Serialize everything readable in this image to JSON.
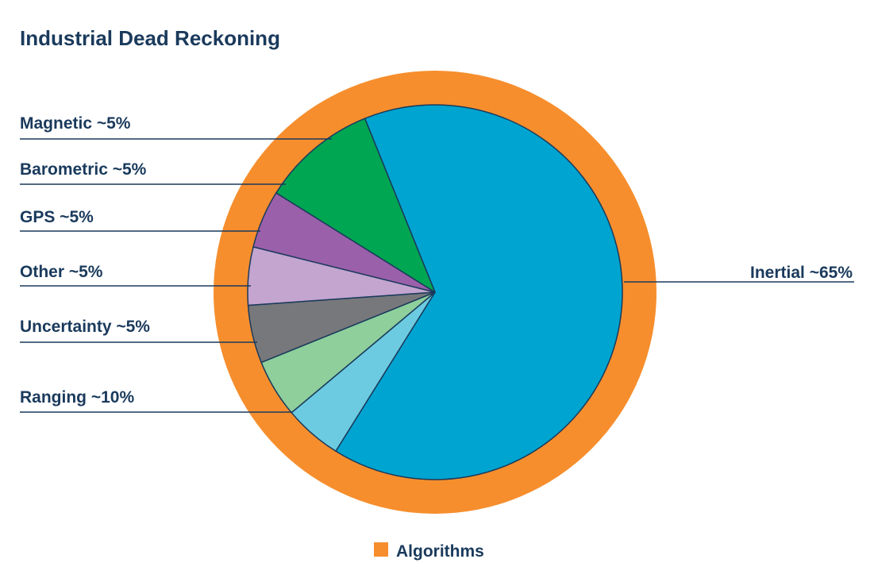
{
  "chart_data": {
    "type": "pie",
    "title": "Industrial Dead Reckoning",
    "slices": [
      {
        "label": "Inertial ~65%",
        "value": 65,
        "color": "#00a4d0"
      },
      {
        "label": "Magnetic ~5%",
        "value": 5,
        "color": "#6ccbe0"
      },
      {
        "label": "Barometric ~5%",
        "value": 5,
        "color": "#8ecf9c"
      },
      {
        "label": "GPS ~5%",
        "value": 5,
        "color": "#77787b"
      },
      {
        "label": "Other ~5%",
        "value": 5,
        "color": "#c3a5cf"
      },
      {
        "label": "Uncertainty ~5%",
        "value": 5,
        "color": "#9b60aa"
      },
      {
        "label": "Ranging ~10%",
        "value": 10,
        "color": "#00a651"
      }
    ],
    "ring": {
      "label": "Algorithms",
      "color": "#f68e2d"
    },
    "legend": {
      "position": "bottom-center",
      "entries": [
        "Algorithms"
      ]
    },
    "label_color": "#1a3a5c"
  }
}
